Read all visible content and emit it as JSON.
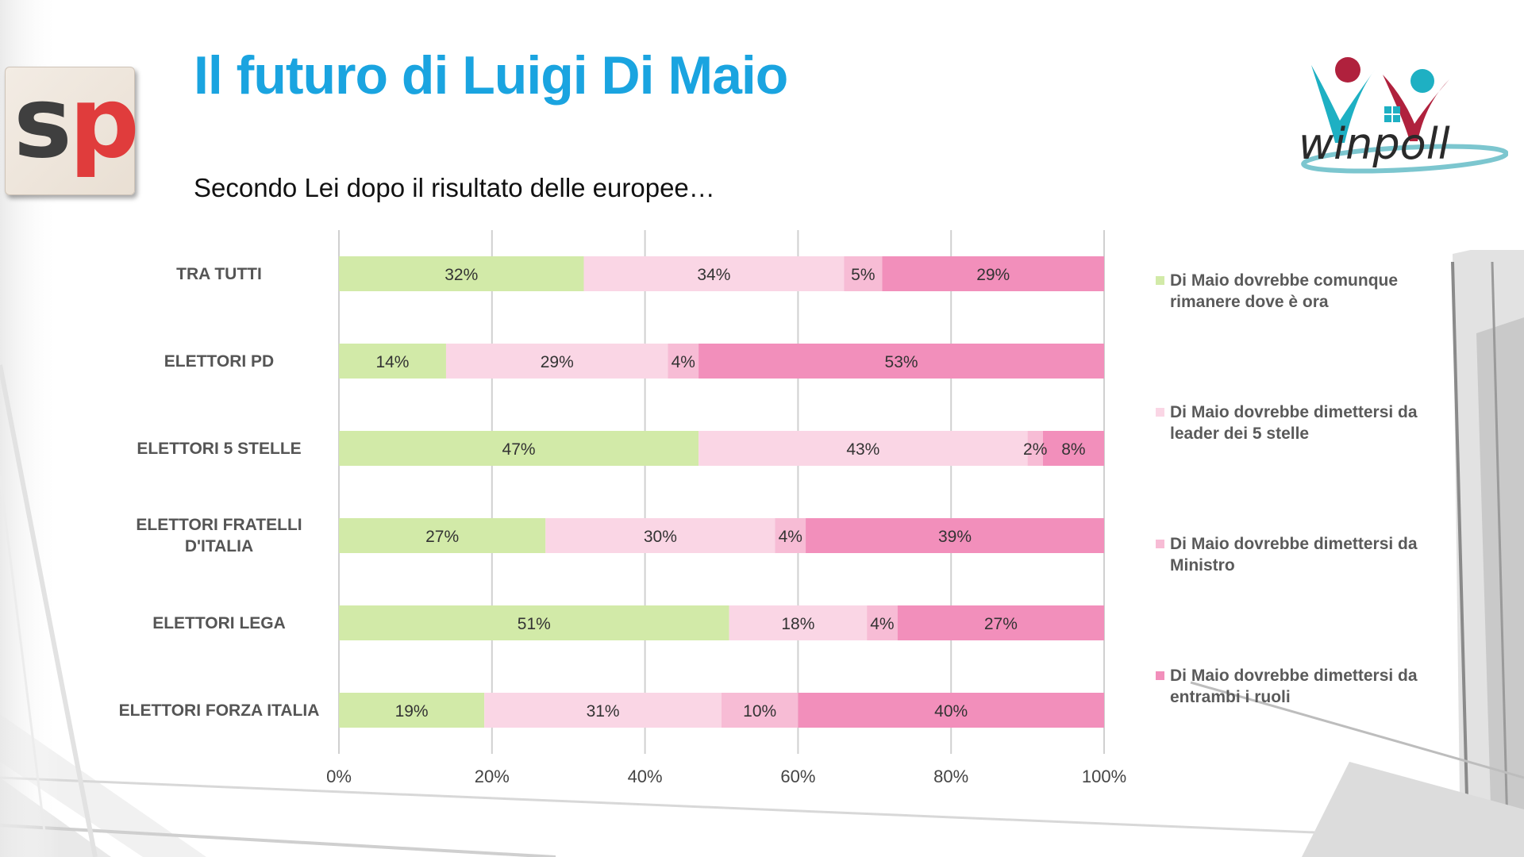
{
  "header": {
    "title": "Il futuro di Luigi Di Maio",
    "subtitle": "Secondo Lei dopo il risultato delle europee…",
    "left_logo_text_s": "s",
    "left_logo_text_p": "p",
    "right_logo_text": "winpoll"
  },
  "colors": {
    "title": "#1aa4e0",
    "series": [
      "#d2eaa8",
      "#fad6e5",
      "#f7bcd5",
      "#f28fbb"
    ]
  },
  "chart_data": {
    "type": "bar",
    "orientation": "horizontal",
    "stacked": "percent",
    "categories": [
      "TRA TUTTI",
      "ELETTORI PD",
      "ELETTORI 5 STELLE",
      "ELETTORI FRATELLI D'ITALIA",
      "ELETTORI LEGA",
      "ELETTORI FORZA ITALIA"
    ],
    "series": [
      {
        "name": "Di Maio dovrebbe comunque rimanere dove è ora",
        "values": [
          32,
          14,
          47,
          27,
          51,
          19
        ],
        "labels": [
          "32%",
          "14%",
          "47%",
          "27%",
          "51%",
          "19%"
        ]
      },
      {
        "name": "Di Maio dovrebbe dimettersi da leader dei 5 stelle",
        "values": [
          34,
          29,
          43,
          30,
          18,
          31
        ],
        "labels": [
          "34%",
          "29%",
          "43%",
          "30%",
          "18%",
          "31%"
        ]
      },
      {
        "name": "Di Maio dovrebbe dimettersi da Ministro",
        "values": [
          5,
          4,
          2,
          4,
          4,
          10
        ],
        "labels": [
          "5%",
          "4%",
          "2%",
          "4%",
          "4%",
          "10%"
        ]
      },
      {
        "name": "Di Maio dovrebbe dimettersi da entrambi i ruoli",
        "values": [
          29,
          53,
          8,
          39,
          27,
          40
        ],
        "labels": [
          "29%",
          "53%",
          "8%",
          "39%",
          "27%",
          "40%"
        ]
      }
    ],
    "xlim": [
      0,
      100
    ],
    "x_ticks": [
      "0%",
      "20%",
      "40%",
      "60%",
      "80%",
      "100%"
    ],
    "grid": true,
    "legend_position": "right"
  }
}
